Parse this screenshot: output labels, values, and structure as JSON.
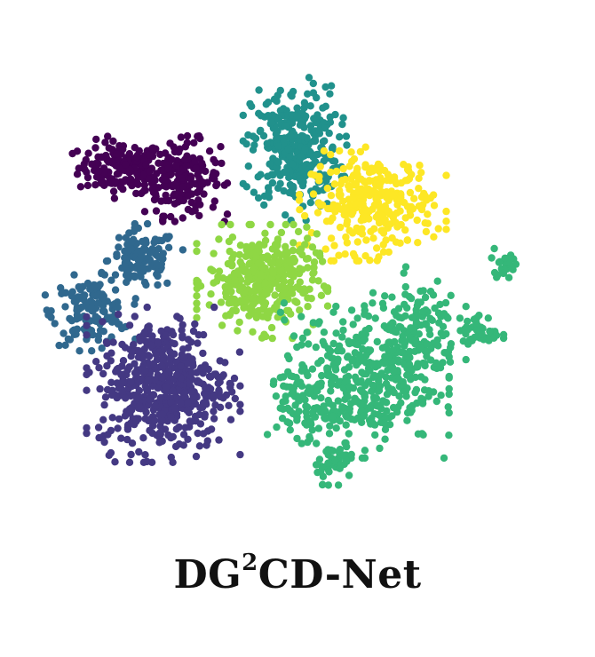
{
  "chart_data": {
    "type": "scatter",
    "title": "",
    "xlabel": "",
    "ylabel": "",
    "axes_visible": false,
    "grid": false,
    "legend": "none",
    "xlim": [
      0,
      100
    ],
    "ylim": [
      0,
      100
    ],
    "series": [
      {
        "color": "#440154",
        "clusters": [
          {
            "x": 12.5,
            "y": 73.5,
            "sx": 4.5,
            "sy": 3.0,
            "n": 150
          },
          {
            "x": 25.5,
            "y": 71.0,
            "sx": 4.0,
            "sy": 4.2,
            "n": 190
          }
        ]
      },
      {
        "color": "#30688e",
        "clusters": [
          {
            "x": 17.0,
            "y": 52.0,
            "sx": 3.6,
            "sy": 3.5,
            "n": 120
          },
          {
            "x": 6.0,
            "y": 40.0,
            "sx": 4.0,
            "sy": 3.8,
            "n": 140
          }
        ]
      },
      {
        "color": "#21918c",
        "clusters": [
          {
            "x": 49.5,
            "y": 78.0,
            "sx": 4.6,
            "sy": 7.0,
            "n": 330
          }
        ]
      },
      {
        "color": "#fde725",
        "clusters": [
          {
            "x": 66.0,
            "y": 65.0,
            "sx": 6.5,
            "sy": 5.5,
            "n": 290
          }
        ]
      },
      {
        "color": "#8fd744",
        "clusters": [
          {
            "x": 42.5,
            "y": 47.0,
            "sx": 5.8,
            "sy": 5.5,
            "n": 360
          }
        ]
      },
      {
        "color": "#443983",
        "clusters": [
          {
            "x": 21.5,
            "y": 23.0,
            "sx": 6.8,
            "sy": 7.5,
            "n": 520
          }
        ]
      },
      {
        "color": "#35b779",
        "clusters": [
          {
            "x": 63.0,
            "y": 24.0,
            "sx": 8.0,
            "sy": 7.5,
            "n": 380
          },
          {
            "x": 75.0,
            "y": 36.0,
            "sx": 4.5,
            "sy": 6.0,
            "n": 150
          },
          {
            "x": 89.0,
            "y": 35.0,
            "sx": 2.0,
            "sy": 2.0,
            "n": 40
          },
          {
            "x": 94.0,
            "y": 51.5,
            "sx": 1.5,
            "sy": 1.5,
            "n": 25
          },
          {
            "x": 52.0,
            "y": 15.0,
            "sx": 3.5,
            "sy": 4.0,
            "n": 60
          },
          {
            "x": 58.0,
            "y": 5.0,
            "sx": 2.0,
            "sy": 2.2,
            "n": 40
          }
        ]
      }
    ]
  },
  "caption": {
    "prefix": "DG",
    "superscript": "2",
    "suffix": "CD-Net"
  }
}
